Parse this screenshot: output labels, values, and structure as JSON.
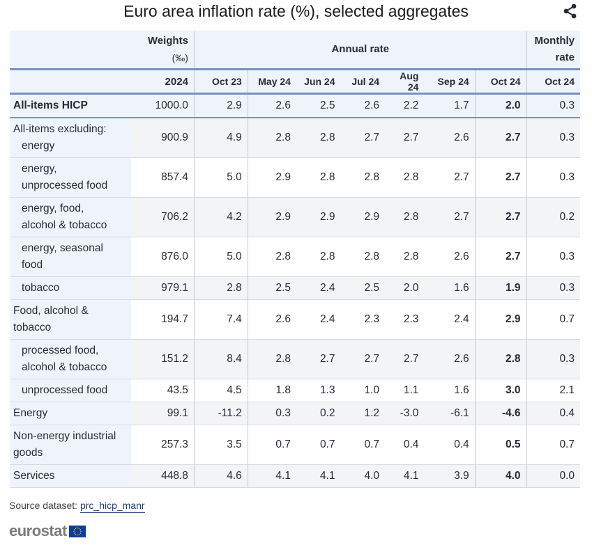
{
  "title": "Euro area inflation rate (%), selected aggregates",
  "share_icon": "share-icon",
  "table": {
    "header_row1": {
      "weights": "Weights",
      "weights_unit": "(‰)",
      "annual_rate": "Annual rate",
      "monthly_line1": "Monthly",
      "monthly_line2": "rate"
    },
    "header_row2": {
      "weights_year": "2024",
      "annual_periods": [
        "Oct 23",
        "May 24",
        "Jun 24",
        "Jul 24",
        "Aug 24",
        "Sep 24",
        "Oct 24"
      ],
      "monthly_period": "Oct 24"
    },
    "rows": [
      {
        "label": "All-items HICP",
        "weight": "1000.0",
        "annual": [
          "2.9",
          "2.6",
          "2.5",
          "2.6",
          "2.2",
          "1.7",
          "2.0"
        ],
        "monthly": "0.3"
      },
      {
        "label": "All-items excluding:",
        "label2": "energy",
        "weight": "900.9",
        "annual": [
          "4.9",
          "2.8",
          "2.8",
          "2.7",
          "2.7",
          "2.6",
          "2.7"
        ],
        "monthly": "0.3"
      },
      {
        "label": "energy,",
        "label2": "unprocessed food",
        "weight": "857.4",
        "annual": [
          "5.0",
          "2.9",
          "2.8",
          "2.8",
          "2.8",
          "2.7",
          "2.7"
        ],
        "monthly": "0.3"
      },
      {
        "label": "energy, food,",
        "label2": "alcohol & tobacco",
        "weight": "706.2",
        "annual": [
          "4.2",
          "2.9",
          "2.9",
          "2.9",
          "2.8",
          "2.7",
          "2.7"
        ],
        "monthly": "0.2"
      },
      {
        "label": "energy, seasonal",
        "label2": "food",
        "weight": "876.0",
        "annual": [
          "5.0",
          "2.8",
          "2.8",
          "2.8",
          "2.8",
          "2.6",
          "2.7"
        ],
        "monthly": "0.3"
      },
      {
        "label": "tobacco",
        "weight": "979.1",
        "annual": [
          "2.8",
          "2.5",
          "2.4",
          "2.5",
          "2.0",
          "1.6",
          "1.9"
        ],
        "monthly": "0.3"
      },
      {
        "label": "Food, alcohol &",
        "label2": "tobacco",
        "weight": "194.7",
        "annual": [
          "7.4",
          "2.6",
          "2.4",
          "2.3",
          "2.3",
          "2.4",
          "2.9"
        ],
        "monthly": "0.7"
      },
      {
        "label": "processed food,",
        "label2": "alcohol & tobacco",
        "weight": "151.2",
        "annual": [
          "8.4",
          "2.8",
          "2.7",
          "2.7",
          "2.7",
          "2.6",
          "2.8"
        ],
        "monthly": "0.3"
      },
      {
        "label": "unprocessed food",
        "weight": "43.5",
        "annual": [
          "4.5",
          "1.8",
          "1.3",
          "1.0",
          "1.1",
          "1.6",
          "3.0"
        ],
        "monthly": "2.1"
      },
      {
        "label": "Energy",
        "weight": "99.1",
        "annual": [
          "-11.2",
          "0.3",
          "0.2",
          "1.2",
          "-3.0",
          "-6.1",
          "-4.6"
        ],
        "monthly": "0.4"
      },
      {
        "label": "Non-energy industrial",
        "label2": "goods",
        "weight": "257.3",
        "annual": [
          "3.5",
          "0.7",
          "0.7",
          "0.7",
          "0.4",
          "0.4",
          "0.5"
        ],
        "monthly": "0.7"
      },
      {
        "label": "Services",
        "weight": "448.8",
        "annual": [
          "4.6",
          "4.1",
          "4.1",
          "4.0",
          "4.1",
          "3.9",
          "4.0"
        ],
        "monthly": "0.0"
      }
    ]
  },
  "footer": {
    "source_label": "Source dataset:",
    "source_link": "prc_hicp_manr",
    "logo_text": "eurostat"
  },
  "colors": {
    "header_bg": "#eff4fc",
    "accent_border": "#7690c3",
    "stripe_bg": "#f3f4f5",
    "link": "#1d3d7a",
    "eu_flag": "#0e3d9a"
  }
}
